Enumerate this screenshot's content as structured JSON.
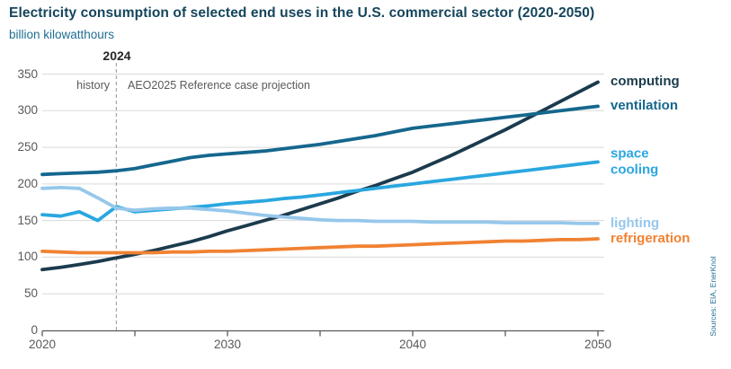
{
  "header": {
    "title": "Electricity consumption of selected end uses in the U.S. commercial sector (2020-2050)",
    "subtitle": "billion kilowatthours"
  },
  "annotations": {
    "divider_year": "2024",
    "history_label": "history",
    "projection_label": "AEO2025 Reference case projection"
  },
  "source_note": "Sources: EIA, EnerKnol",
  "colors": {
    "title_text": "#14455c",
    "subtitle_text": "#1e6e91",
    "axis_text": "#595959",
    "axis_line": "#595959",
    "gridline": "#d9d9d9",
    "divider_line": "#a6a6a6",
    "divider_year_text": "#262626"
  },
  "chart_data": {
    "type": "line",
    "title": "Electricity consumption of selected end uses in the U.S. commercial sector (2020-2050)",
    "ylabel": "billion kilowatthours",
    "xlabel": "",
    "grid": "horizontal",
    "legend_position": "right-end-labels",
    "ylim": [
      0,
      350
    ],
    "y_ticks": [
      0,
      50,
      100,
      150,
      200,
      250,
      300,
      350
    ],
    "x_ticks_minor": [
      2020,
      2025,
      2030,
      2035,
      2040,
      2045,
      2050
    ],
    "x_ticks_labeled": [
      2020,
      2030,
      2040,
      2050
    ],
    "divider_x": 2024,
    "x": [
      2020,
      2021,
      2022,
      2023,
      2024,
      2025,
      2026,
      2027,
      2028,
      2029,
      2030,
      2031,
      2032,
      2033,
      2034,
      2035,
      2036,
      2037,
      2038,
      2039,
      2040,
      2041,
      2042,
      2043,
      2044,
      2045,
      2046,
      2047,
      2048,
      2049,
      2050
    ],
    "series": [
      {
        "name": "computing",
        "color": "#1b3b4d",
        "values": [
          83,
          86,
          90,
          94,
          99,
          104,
          109,
          115,
          121,
          128,
          136,
          143,
          150,
          157,
          165,
          173,
          181,
          190,
          198,
          207,
          216,
          227,
          238,
          250,
          262,
          274,
          287,
          300,
          313,
          326,
          339
        ]
      },
      {
        "name": "ventilation",
        "color": "#15678d",
        "values": [
          213,
          214,
          215,
          216,
          218,
          221,
          226,
          231,
          236,
          239,
          241,
          243,
          245,
          248,
          251,
          254,
          258,
          262,
          266,
          271,
          276,
          279,
          282,
          285,
          288,
          291,
          294,
          297,
          300,
          303,
          306
        ]
      },
      {
        "name": "space cooling",
        "color": "#2aa7e0",
        "values": [
          158,
          156,
          162,
          150,
          169,
          162,
          164,
          166,
          168,
          170,
          173,
          175,
          177,
          180,
          182,
          185,
          188,
          191,
          194,
          197,
          200,
          203,
          206,
          209,
          212,
          215,
          218,
          221,
          224,
          227,
          230
        ]
      },
      {
        "name": "lighting",
        "color": "#96c7eb",
        "values": [
          194,
          195,
          194,
          181,
          167,
          164,
          166,
          167,
          167,
          165,
          163,
          160,
          157,
          155,
          153,
          151,
          150,
          150,
          149,
          149,
          149,
          148,
          148,
          148,
          148,
          147,
          147,
          147,
          147,
          146,
          146
        ]
      },
      {
        "name": "refrigeration",
        "color": "#f08232",
        "values": [
          108,
          107,
          106,
          106,
          106,
          106,
          106,
          107,
          107,
          108,
          108,
          109,
          110,
          111,
          112,
          113,
          114,
          115,
          115,
          116,
          117,
          118,
          119,
          120,
          121,
          122,
          122,
          123,
          124,
          124,
          125
        ]
      }
    ]
  }
}
